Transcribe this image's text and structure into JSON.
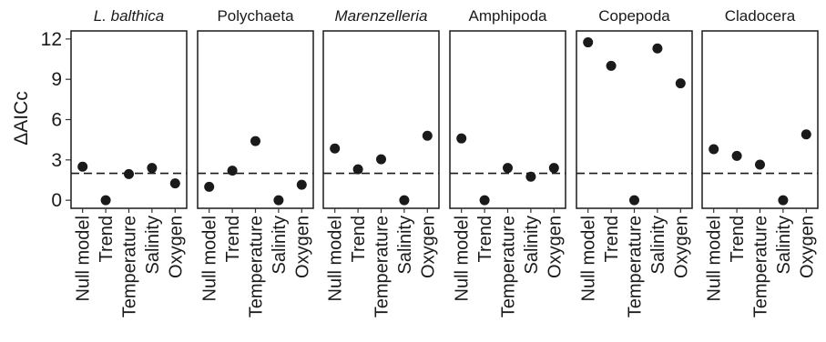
{
  "chart_data": {
    "type": "scatter",
    "ylabel": "ΔAICc",
    "ylim": [
      -0.6,
      12.6
    ],
    "yticks": [
      0,
      3,
      6,
      9,
      12
    ],
    "reference_line": 2,
    "categories": [
      "Null model",
      "Trend",
      "Temperature",
      "Salinity",
      "Oxygen"
    ],
    "marker_color": "#1a1a1a",
    "facets": [
      {
        "title": "L. balthica",
        "italic": true,
        "values": [
          2.5,
          0.0,
          1.95,
          2.4,
          1.25
        ]
      },
      {
        "title": "Polychaeta",
        "italic": false,
        "values": [
          1.0,
          2.2,
          4.4,
          0.0,
          1.15
        ]
      },
      {
        "title": "Marenzelleria",
        "italic": true,
        "values": [
          3.85,
          2.3,
          3.05,
          0.0,
          4.8
        ]
      },
      {
        "title": "Amphipoda",
        "italic": false,
        "values": [
          4.6,
          0.0,
          2.4,
          1.75,
          2.4
        ]
      },
      {
        "title": "Copepoda",
        "italic": false,
        "values": [
          11.75,
          10.0,
          0.0,
          11.3,
          8.7
        ]
      },
      {
        "title": "Cladocera",
        "italic": false,
        "values": [
          3.8,
          3.3,
          2.65,
          0.0,
          4.9
        ]
      }
    ]
  }
}
